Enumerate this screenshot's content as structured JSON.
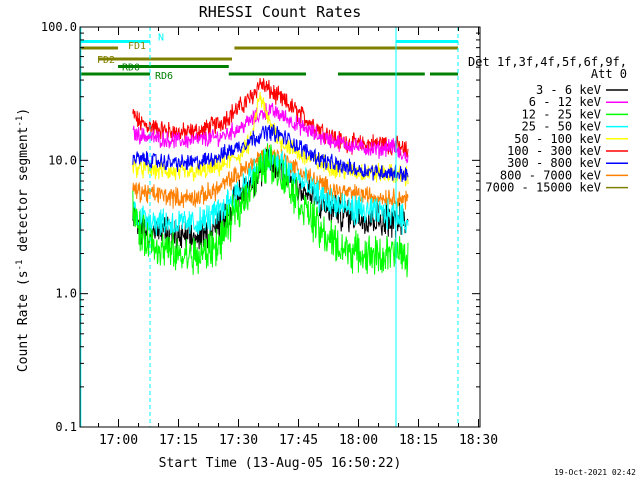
{
  "chart_data": {
    "type": "line",
    "title": "RHESSI Count Rates",
    "xlabel": "Start Time (13-Aug-05 16:50:22)",
    "ylabel_parts": [
      "Count Rate (s",
      "-1",
      " detector segment",
      "-1",
      ")"
    ],
    "y_scale": "log",
    "ylim": [
      0.1,
      100
    ],
    "xlim_minutes_after_start": [
      0,
      100
    ],
    "y_ticks": [
      {
        "value": 0.1,
        "label": "0.1"
      },
      {
        "value": 1,
        "label": "1.0"
      },
      {
        "value": 10,
        "label": "10.0"
      },
      {
        "value": 100,
        "label": "100.0"
      }
    ],
    "x_ticks": [
      {
        "label": "17:00",
        "minutes_after_start": 9.63
      },
      {
        "label": "17:15",
        "minutes_after_start": 24.63
      },
      {
        "label": "17:30",
        "minutes_after_start": 39.63
      },
      {
        "label": "17:45",
        "minutes_after_start": 54.63
      },
      {
        "label": "18:00",
        "minutes_after_start": 69.63
      },
      {
        "label": "18:15",
        "minutes_after_start": 84.63
      },
      {
        "label": "18:30",
        "minutes_after_start": 99.63
      }
    ],
    "data_window_minutes": [
      13.2,
      82.0
    ],
    "legend": {
      "header": [
        "Det 1f,3f,4f,5f,6f,9f,",
        "Att 0"
      ],
      "position": "right"
    },
    "series": [
      {
        "name": "3 - 6 keV",
        "color": "#000000",
        "points": [
          [
            13.2,
            4.0
          ],
          [
            15,
            3.0
          ],
          [
            20,
            2.9
          ],
          [
            25,
            2.6
          ],
          [
            30,
            2.6
          ],
          [
            35,
            3.3
          ],
          [
            40,
            5.5
          ],
          [
            45,
            8.0
          ],
          [
            47,
            9.5
          ],
          [
            50,
            8.5
          ],
          [
            55,
            6.2
          ],
          [
            60,
            4.7
          ],
          [
            65,
            4.0
          ],
          [
            70,
            3.8
          ],
          [
            75,
            3.6
          ],
          [
            80,
            3.5
          ],
          [
            82,
            3.3
          ]
        ]
      },
      {
        "name": "6 - 12 keV",
        "color": "#ff00ff",
        "points": [
          [
            13.2,
            16.0
          ],
          [
            15,
            15.5
          ],
          [
            20,
            14.5
          ],
          [
            25,
            14.0
          ],
          [
            30,
            14.2
          ],
          [
            35,
            15.0
          ],
          [
            40,
            17.5
          ],
          [
            45,
            22.0
          ],
          [
            47,
            24.0
          ],
          [
            50,
            22.0
          ],
          [
            55,
            18.0
          ],
          [
            60,
            15.0
          ],
          [
            65,
            13.5
          ],
          [
            70,
            12.5
          ],
          [
            75,
            12.0
          ],
          [
            78,
            13.0
          ],
          [
            80,
            11.0
          ],
          [
            82,
            10.5
          ]
        ]
      },
      {
        "name": "12 - 25 keV",
        "color": "#00ff00",
        "points": [
          [
            13.2,
            4.5
          ],
          [
            15,
            2.8
          ],
          [
            20,
            2.2
          ],
          [
            25,
            1.9
          ],
          [
            30,
            1.9
          ],
          [
            35,
            2.4
          ],
          [
            40,
            4.5
          ],
          [
            45,
            8.0
          ],
          [
            47,
            10.0
          ],
          [
            50,
            8.0
          ],
          [
            55,
            4.8
          ],
          [
            60,
            2.9
          ],
          [
            65,
            2.2
          ],
          [
            70,
            2.0
          ],
          [
            75,
            1.9
          ],
          [
            80,
            2.0
          ],
          [
            82,
            1.8
          ]
        ]
      },
      {
        "name": "25 - 50 keV",
        "color": "#00ffff",
        "points": [
          [
            13.2,
            4.2
          ],
          [
            15,
            3.8
          ],
          [
            20,
            3.5
          ],
          [
            25,
            3.3
          ],
          [
            30,
            3.4
          ],
          [
            35,
            4.1
          ],
          [
            40,
            6.0
          ],
          [
            45,
            9.0
          ],
          [
            47,
            10.2
          ],
          [
            50,
            9.5
          ],
          [
            55,
            7.0
          ],
          [
            60,
            5.3
          ],
          [
            65,
            4.5
          ],
          [
            70,
            4.2
          ],
          [
            75,
            4.0
          ],
          [
            80,
            3.8
          ],
          [
            82,
            3.5
          ]
        ]
      },
      {
        "name": "50 - 100 keV",
        "color": "#ffff00",
        "points": [
          [
            13.2,
            9.0
          ],
          [
            15,
            8.8
          ],
          [
            20,
            8.4
          ],
          [
            25,
            8.0
          ],
          [
            30,
            8.2
          ],
          [
            35,
            9.0
          ],
          [
            40,
            11.0
          ],
          [
            43,
            14.0
          ],
          [
            45,
            30.0
          ],
          [
            47,
            20.0
          ],
          [
            50,
            14.0
          ],
          [
            55,
            11.0
          ],
          [
            60,
            9.5
          ],
          [
            65,
            8.6
          ],
          [
            70,
            8.2
          ],
          [
            75,
            8.0
          ],
          [
            80,
            7.8
          ],
          [
            82,
            7.5
          ]
        ]
      },
      {
        "name": "100 - 300 keV",
        "color": "#ff0000",
        "points": [
          [
            13.2,
            22.0
          ],
          [
            15,
            19.0
          ],
          [
            20,
            17.0
          ],
          [
            25,
            16.0
          ],
          [
            30,
            16.5
          ],
          [
            35,
            19.0
          ],
          [
            40,
            25.0
          ],
          [
            43,
            30.0
          ],
          [
            45,
            38.0
          ],
          [
            47,
            34.0
          ],
          [
            50,
            29.0
          ],
          [
            55,
            22.0
          ],
          [
            60,
            17.0
          ],
          [
            65,
            14.0
          ],
          [
            70,
            13.0
          ],
          [
            75,
            13.5
          ],
          [
            80,
            12.5
          ],
          [
            82,
            11.5
          ]
        ]
      },
      {
        "name": "300 - 800 keV",
        "color": "#0000ff",
        "points": [
          [
            13.2,
            10.5
          ],
          [
            15,
            10.2
          ],
          [
            20,
            9.8
          ],
          [
            25,
            9.5
          ],
          [
            30,
            9.7
          ],
          [
            35,
            10.8
          ],
          [
            40,
            12.8
          ],
          [
            45,
            15.5
          ],
          [
            47,
            16.5
          ],
          [
            50,
            15.5
          ],
          [
            55,
            12.5
          ],
          [
            60,
            10.2
          ],
          [
            65,
            9.0
          ],
          [
            70,
            8.5
          ],
          [
            75,
            8.2
          ],
          [
            80,
            8.0
          ],
          [
            82,
            7.8
          ]
        ]
      },
      {
        "name": "800 - 7000 keV",
        "color": "#ff8000",
        "points": [
          [
            13.2,
            6.0
          ],
          [
            15,
            5.8
          ],
          [
            20,
            5.5
          ],
          [
            25,
            5.2
          ],
          [
            30,
            5.3
          ],
          [
            35,
            6.2
          ],
          [
            40,
            8.0
          ],
          [
            45,
            10.5
          ],
          [
            47,
            11.5
          ],
          [
            50,
            10.5
          ],
          [
            55,
            8.2
          ],
          [
            60,
            6.6
          ],
          [
            65,
            5.8
          ],
          [
            70,
            5.5
          ],
          [
            75,
            5.3
          ],
          [
            80,
            5.2
          ],
          [
            82,
            5.0
          ]
        ]
      },
      {
        "name": "7000 - 15000 keV",
        "color": "#808000",
        "points": []
      }
    ],
    "attenuator_and_state_bars": [
      {
        "label": "N",
        "color": "#00ffff",
        "level": 0,
        "segments": [
          [
            0,
            17.5
          ],
          [
            79,
            94.5
          ]
        ]
      },
      {
        "label": "FD1",
        "color": "#808000",
        "level": 1,
        "segments": [
          [
            0,
            9.5
          ],
          [
            38.6,
            94.5
          ]
        ]
      },
      {
        "label": "FD2",
        "color": "#808000",
        "level": 2,
        "segments": [
          [
            4.5,
            38
          ]
        ]
      },
      {
        "label": "RD0",
        "color": "#008000",
        "level": 3,
        "segments": [
          [
            9.5,
            37.2
          ]
        ]
      },
      {
        "label": "RD6",
        "color": "#008000",
        "level": 4,
        "segments": [
          [
            0,
            17.5
          ],
          [
            37.2,
            56.5
          ],
          [
            64.5,
            86.2
          ],
          [
            87.5,
            94.5
          ]
        ]
      }
    ],
    "vertical_lines": [
      {
        "minutes_after_start": 0.2,
        "style": "solid",
        "color": "#00ffff"
      },
      {
        "minutes_after_start": 17.5,
        "style": "dashed",
        "color": "#00ffff"
      },
      {
        "minutes_after_start": 79.0,
        "style": "solid",
        "color": "#00ffff"
      },
      {
        "minutes_after_start": 94.5,
        "style": "dashed",
        "color": "#00ffff"
      }
    ],
    "footer_timestamp": "19-Oct-2021 02:42"
  }
}
